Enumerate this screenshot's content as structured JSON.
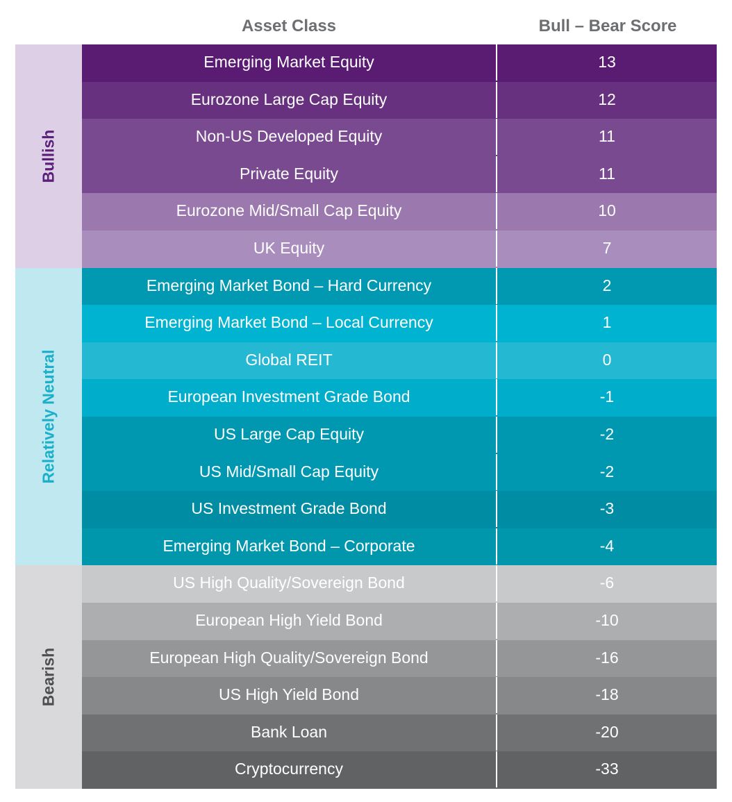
{
  "chart_data": {
    "type": "table",
    "columns": [
      "Asset Class",
      "Bull – Bear Score"
    ],
    "groups": [
      {
        "label": "Bullish",
        "bg": "#ddd0e6",
        "text_color": "#5b1f7a",
        "rows": [
          {
            "name": "Emerging Market Equity",
            "score": "13",
            "color": "#5a1c72"
          },
          {
            "name": "Eurozone Large Cap Equity",
            "score": "12",
            "color": "#683180"
          },
          {
            "name": "Non-US Developed Equity",
            "score": "11",
            "color": "#7a4a90"
          },
          {
            "name": "Private Equity",
            "score": "11",
            "color": "#7a4a90"
          },
          {
            "name": "Eurozone Mid/Small Cap Equity",
            "score": "10",
            "color": "#9b78ae"
          },
          {
            "name": "UK Equity",
            "score": "7",
            "color": "#a98dbd"
          }
        ]
      },
      {
        "label": "Relatively Neutral",
        "bg": "#bfe8f1",
        "text_color": "#1ab0c9",
        "rows": [
          {
            "name": "Emerging Market Bond – Hard Currency",
            "score": "2",
            "color": "#0099b1"
          },
          {
            "name": "Emerging Market Bond – Local Currency",
            "score": "1",
            "color": "#00b4d1"
          },
          {
            "name": "Global REIT",
            "score": "0",
            "color": "#25b8d2"
          },
          {
            "name": "European Investment Grade Bond",
            "score": "-1",
            "color": "#00aecb"
          },
          {
            "name": "US Large Cap Equity",
            "score": "-2",
            "color": "#0098b0"
          },
          {
            "name": "US Mid/Small Cap Equity",
            "score": "-2",
            "color": "#0098b0"
          },
          {
            "name": "US Investment Grade Bond",
            "score": "-3",
            "color": "#008ca2"
          },
          {
            "name": "Emerging Market Bond – Corporate",
            "score": "-4",
            "color": "#0097ad"
          }
        ]
      },
      {
        "label": "Bearish",
        "bg": "#d9d9db",
        "text_color": "#4d4e50",
        "rows": [
          {
            "name": "US High Quality/Sovereign Bond",
            "score": "-6",
            "color": "#c8c9cb"
          },
          {
            "name": "European High Yield Bond",
            "score": "-10",
            "color": "#adaeb0"
          },
          {
            "name": "European High Quality/Sovereign Bond",
            "score": "-16",
            "color": "#959698"
          },
          {
            "name": "US High Yield Bond",
            "score": "-18",
            "color": "#87888a"
          },
          {
            "name": "Bank Loan",
            "score": "-20",
            "color": "#707173"
          },
          {
            "name": "Cryptocurrency",
            "score": "-33",
            "color": "#616264"
          }
        ]
      }
    ]
  }
}
